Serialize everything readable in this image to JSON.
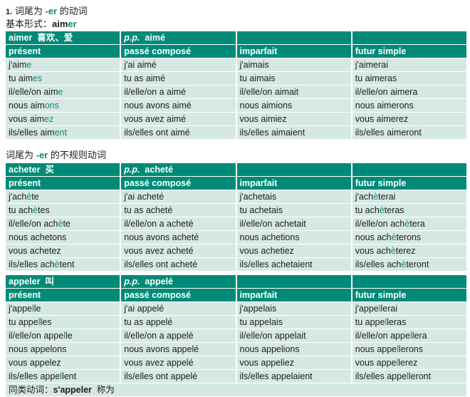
{
  "heading": {
    "number": "1.",
    "pre": "词尾为 ",
    "ending": "-er",
    "post": " 的动词"
  },
  "basic_form": {
    "label": "基本形式：",
    "stem": "aim",
    "ending": "er"
  },
  "section2": {
    "pre": "词尾为 ",
    "ending": "-er",
    "post": " 的不规则动词"
  },
  "colors": {
    "header_bg": "#008a78",
    "row_bg": "#d6e8e4",
    "highlight": "#13876f"
  },
  "columns": [
    "présent",
    "passé composé",
    "imparfait",
    "futur simple"
  ],
  "tables": [
    {
      "verb": "aimer",
      "meaning": "喜欢、爱",
      "pp_label": "p.p.",
      "pp": "aimé",
      "rows": [
        [
          [
            "j'aim",
            "e"
          ],
          [
            "j'ai aimé"
          ],
          [
            "j'aimais"
          ],
          [
            "j'aimerai"
          ]
        ],
        [
          [
            "tu aim",
            "es"
          ],
          [
            "tu as aimé"
          ],
          [
            "tu aimais"
          ],
          [
            "tu aimeras"
          ]
        ],
        [
          [
            "il/elle/on aim",
            "e"
          ],
          [
            "il/elle/on a aimé"
          ],
          [
            "il/elle/on aimait"
          ],
          [
            "il/elle/on aimera"
          ]
        ],
        [
          [
            "nous aim",
            "ons"
          ],
          [
            "nous avons aimé"
          ],
          [
            "nous aimions"
          ],
          [
            "nous aimerons"
          ]
        ],
        [
          [
            "vous aim",
            "ez"
          ],
          [
            "vous avez aimé"
          ],
          [
            "vous aimiez"
          ],
          [
            "vous aimerez"
          ]
        ],
        [
          [
            "ils/elles aim",
            "ent"
          ],
          [
            "ils/elles ont aimé"
          ],
          [
            "ils/elles aimaient"
          ],
          [
            "ils/elles aimeront"
          ]
        ]
      ]
    },
    {
      "verb": "acheter",
      "meaning": "买",
      "pp_label": "p.p.",
      "pp": "acheté",
      "rows": [
        [
          [
            "j'ach",
            "è",
            "te"
          ],
          [
            "j'ai acheté"
          ],
          [
            "j'achetais"
          ],
          [
            "j'ach",
            "è",
            "terai"
          ]
        ],
        [
          [
            "tu ach",
            "è",
            "tes"
          ],
          [
            "tu as acheté"
          ],
          [
            "tu achetais"
          ],
          [
            "tu ach",
            "è",
            "teras"
          ]
        ],
        [
          [
            "il/elle/on ach",
            "è",
            "te"
          ],
          [
            "il/elle/on a acheté"
          ],
          [
            "il/elle/on achetait"
          ],
          [
            "il/elle/on ach",
            "è",
            "tera"
          ]
        ],
        [
          [
            "nous achetons"
          ],
          [
            "nous avons acheté"
          ],
          [
            "nous achetions"
          ],
          [
            "nous ach",
            "è",
            "terons"
          ]
        ],
        [
          [
            "vous achetez"
          ],
          [
            "vous avez acheté"
          ],
          [
            "vous achetiez"
          ],
          [
            "vous ach",
            "è",
            "terez"
          ]
        ],
        [
          [
            "ils/elles ach",
            "è",
            "tent"
          ],
          [
            "ils/elles ont acheté"
          ],
          [
            "ils/elles achetaient"
          ],
          [
            "ils/elles ach",
            "è",
            "teront"
          ]
        ]
      ]
    },
    {
      "verb": "appeler",
      "meaning": "叫",
      "pp_label": "p.p.",
      "pp": "appelé",
      "rows": [
        [
          [
            "j'appe",
            "l",
            "le"
          ],
          [
            "j'ai appelé"
          ],
          [
            "j'appelais"
          ],
          [
            "j'appe",
            "l",
            "lerai"
          ]
        ],
        [
          [
            "tu appe",
            "l",
            "les"
          ],
          [
            "tu as appelé"
          ],
          [
            "tu appelais"
          ],
          [
            "tu appe",
            "l",
            "leras"
          ]
        ],
        [
          [
            "il/elle/on appe",
            "l",
            "le"
          ],
          [
            "il/elle/on a appelé"
          ],
          [
            "il/elle/on appelait"
          ],
          [
            "il/elle/on appe",
            "l",
            "lera"
          ]
        ],
        [
          [
            "nous appelons"
          ],
          [
            "nous avons appelé"
          ],
          [
            "nous appelions"
          ],
          [
            "nous appe",
            "l",
            "lerons"
          ]
        ],
        [
          [
            "vous appelez"
          ],
          [
            "vous avez appelé"
          ],
          [
            "vous appeliez"
          ],
          [
            "vous appe",
            "l",
            "lerez"
          ]
        ],
        [
          [
            "ils/elles appe",
            "l",
            "lent"
          ],
          [
            "ils/elles ont appelé"
          ],
          [
            "ils/elles appelaient"
          ],
          [
            "ils/elles appe",
            "l",
            "leront"
          ]
        ]
      ],
      "footer": {
        "label": "同类动词：",
        "verb": "s'appeler",
        "meaning": "称为"
      }
    }
  ]
}
